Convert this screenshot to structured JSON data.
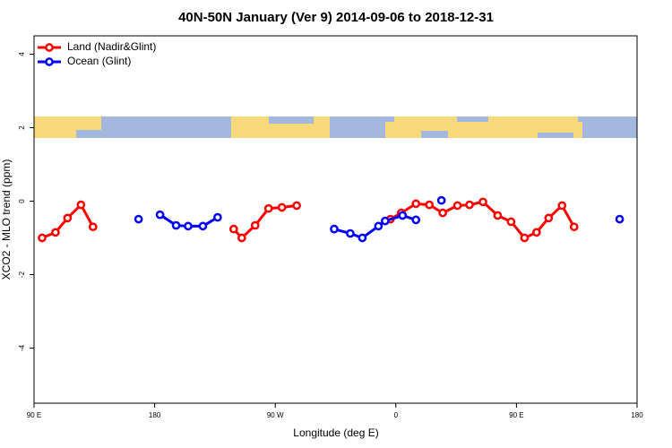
{
  "chart_data": {
    "type": "line",
    "title": "40N-50N January (Ver 9)   2014-09-06 to 2018-12-31",
    "x_label": "Longitude (deg E)",
    "y_label": "XCO2 - MLO trend (ppm)",
    "xlim": [
      90,
      540
    ],
    "ylim": [
      -5.5,
      4.5
    ],
    "xticks": [
      {
        "value": 90,
        "label": "90 E"
      },
      180,
      {
        "value": 270,
        "label": "90 W"
      },
      {
        "value": 360,
        "label": "0"
      },
      {
        "value": 450,
        "label": "90 E"
      },
      {
        "value": 540,
        "label": "180"
      }
    ],
    "yticks": [
      -4,
      -2,
      0,
      2,
      4
    ],
    "legend_position": "top-left",
    "series": [
      {
        "name": "Land (Nadir&Glint)",
        "color": "#ff0000",
        "x": [
          96,
          106,
          115,
          125,
          134,
          null,
          239,
          245,
          255,
          265,
          275,
          286,
          null,
          356,
          364,
          375,
          385,
          395,
          406,
          415,
          425,
          436,
          446,
          456,
          465,
          474,
          484,
          493
        ],
        "values": [
          -1.0,
          -0.85,
          -0.46,
          -0.1,
          -0.7,
          null,
          -0.76,
          -1.0,
          -0.66,
          -0.2,
          -0.17,
          -0.12,
          null,
          -0.49,
          -0.32,
          -0.07,
          -0.1,
          -0.32,
          -0.12,
          -0.1,
          -0.02,
          -0.39,
          -0.56,
          -1.0,
          -0.85,
          -0.46,
          -0.12,
          -0.7
        ]
      },
      {
        "name": "Ocean (Glint)",
        "color": "#0000ff",
        "x": [
          168,
          null,
          184,
          196,
          205,
          216,
          227,
          null,
          314,
          326,
          335,
          347,
          352,
          365,
          375,
          null,
          394,
          null,
          527
        ],
        "values": [
          -0.49,
          null,
          -0.37,
          -0.66,
          -0.68,
          -0.68,
          -0.44,
          null,
          -0.76,
          -0.88,
          -1.0,
          -0.68,
          -0.54,
          -0.39,
          -0.51,
          null,
          0.02,
          null,
          -0.49
        ]
      }
    ]
  }
}
